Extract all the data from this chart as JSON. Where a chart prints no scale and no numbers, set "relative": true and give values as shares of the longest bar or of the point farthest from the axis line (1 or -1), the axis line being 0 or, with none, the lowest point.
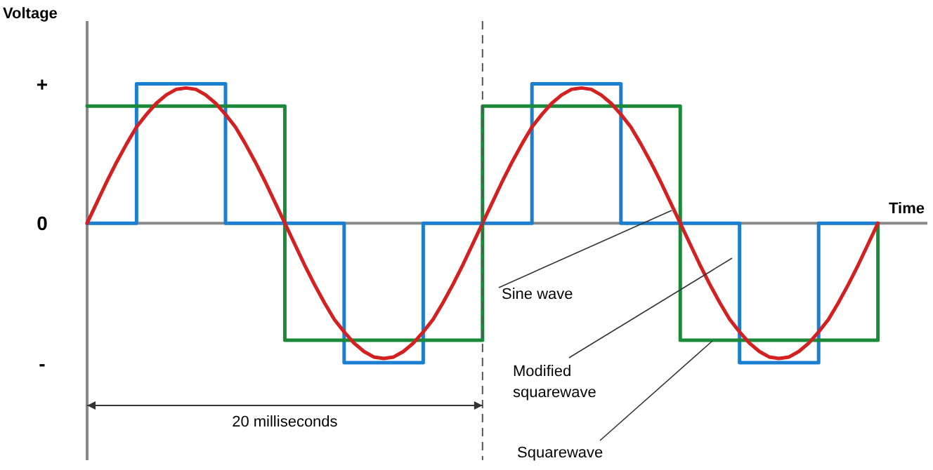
{
  "chart_data": {
    "type": "line",
    "xlabel": "Time",
    "ylabel": "Voltage",
    "relative": true,
    "categories": [
      null,
      null,
      null,
      null,
      null,
      null,
      null,
      null,
      null,
      null,
      null,
      null,
      null,
      null,
      null,
      null,
      null,
      null,
      null,
      null,
      null,
      null,
      null,
      null,
      null,
      null,
      null,
      null,
      null,
      null,
      null,
      null,
      null,
      null,
      null,
      null,
      null,
      null,
      null,
      null,
      null,
      null,
      null,
      null,
      null,
      null,
      null,
      null,
      null,
      null,
      null,
      null,
      null,
      null,
      null,
      null,
      null,
      null,
      null,
      null,
      null,
      null,
      null,
      null,
      null,
      null,
      null,
      null,
      null,
      null,
      null,
      null,
      null,
      null,
      null,
      null,
      null,
      null,
      null,
      null,
      null,
      null,
      null,
      null,
      null,
      null
    ],
    "marker": "none",
    "line_style": "solid",
    "series": [
      {
        "type": "step",
        "color": "#1a7fd0",
        "values": [
          0,
          0,
          0,
          0,
          0,
          1,
          1,
          1,
          1,
          1,
          1,
          1,
          1,
          1,
          0,
          0,
          0,
          0,
          0,
          0,
          0,
          0,
          0,
          0,
          0,
          0,
          -1,
          -1,
          -1,
          -1,
          -1,
          -1,
          -1,
          -1,
          0,
          0,
          0,
          0,
          0,
          0,
          0,
          0,
          0,
          0,
          0,
          1,
          1,
          1,
          1,
          1,
          1,
          1,
          1,
          1,
          0,
          0,
          0,
          0,
          0,
          0,
          0,
          0,
          0,
          0,
          0,
          0,
          -1,
          -1,
          -1,
          -1,
          -1,
          -1,
          -1,
          -1,
          0,
          0,
          0,
          0,
          0,
          0,
          0,
          null,
          null,
          null,
          null,
          null
        ]
      },
      {
        "type": "step",
        "color": "#1a8a3a",
        "values": [
          0.84,
          0.84,
          0.84,
          0.84,
          0.84,
          0.84,
          0.84,
          0.84,
          0.84,
          0.84,
          0.84,
          0.84,
          0.84,
          0.84,
          0.84,
          0.84,
          0.84,
          0.84,
          0.84,
          0.84,
          -0.84,
          -0.84,
          -0.84,
          -0.84,
          -0.84,
          -0.84,
          -0.84,
          -0.84,
          -0.84,
          -0.84,
          -0.84,
          -0.84,
          -0.84,
          -0.84,
          -0.84,
          -0.84,
          -0.84,
          -0.84,
          -0.84,
          -0.84,
          0.84,
          0.84,
          0.84,
          0.84,
          0.84,
          0.84,
          0.84,
          0.84,
          0.84,
          0.84,
          0.84,
          0.84,
          0.84,
          0.84,
          0.84,
          0.84,
          0.84,
          0.84,
          0.84,
          0.84,
          -0.84,
          -0.84,
          -0.84,
          -0.84,
          -0.84,
          -0.84,
          -0.84,
          -0.84,
          -0.84,
          -0.84,
          -0.84,
          -0.84,
          -0.84,
          -0.84,
          -0.84,
          -0.84,
          -0.84,
          -0.84,
          -0.84,
          -0.84,
          0,
          null,
          null,
          null,
          null,
          null
        ]
      },
      {
        "color": "#d42020",
        "values": [
          0,
          0.15,
          0.3,
          0.44,
          0.57,
          0.69,
          0.78,
          0.86,
          0.92,
          0.96,
          0.97,
          0.96,
          0.92,
          0.86,
          0.78,
          0.69,
          0.57,
          0.44,
          0.3,
          0.15,
          0,
          -0.15,
          -0.3,
          -0.44,
          -0.57,
          -0.69,
          -0.78,
          -0.86,
          -0.92,
          -0.96,
          -0.97,
          -0.96,
          -0.92,
          -0.86,
          -0.78,
          -0.69,
          -0.57,
          -0.44,
          -0.3,
          -0.15,
          0,
          0.15,
          0.3,
          0.44,
          0.57,
          0.69,
          0.78,
          0.86,
          0.92,
          0.96,
          0.97,
          0.96,
          0.92,
          0.86,
          0.78,
          0.69,
          0.57,
          0.44,
          0.3,
          0.15,
          0,
          -0.15,
          -0.3,
          -0.44,
          -0.57,
          -0.69,
          -0.78,
          -0.86,
          -0.92,
          -0.96,
          -0.97,
          -0.96,
          -0.92,
          -0.86,
          -0.78,
          -0.69,
          -0.57,
          -0.44,
          -0.3,
          -0.15,
          0,
          null,
          null,
          null,
          null,
          null
        ]
      }
    ],
    "annotations": [
      "+",
      "0",
      "-",
      "Sine wave",
      "Modified squarewave",
      "Squarewave",
      "20 milliseconds"
    ]
  }
}
